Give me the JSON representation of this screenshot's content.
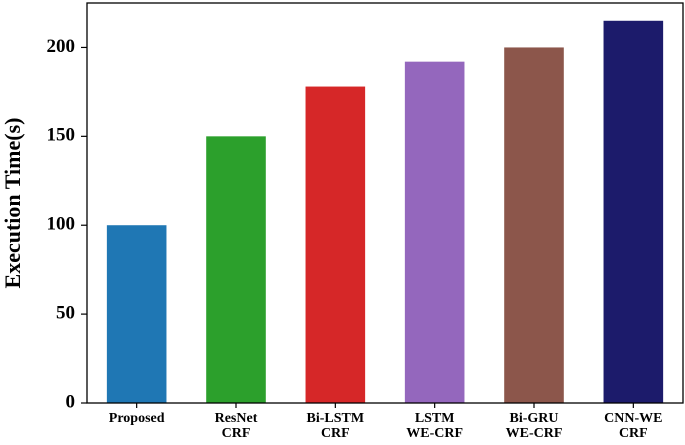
{
  "chart_data": {
    "type": "bar",
    "y_label": "Execution Time(s)",
    "categories": [
      "Proposed",
      "ResNet\nCRF",
      "Bi-LSTM\nCRF",
      "LSTM\nWE-CRF",
      "Bi-GRU\nWE-CRF",
      "CNN-WE\nCRF"
    ],
    "values": [
      100,
      150,
      178,
      192,
      200,
      215
    ],
    "colors": [
      "#1f77b4",
      "#2ca02c",
      "#d62728",
      "#9467bd",
      "#8c564b",
      "#1c1b6b"
    ],
    "ylim": [
      0,
      225
    ],
    "yticks": [
      0,
      50,
      100,
      150,
      200
    ],
    "grid": false
  }
}
